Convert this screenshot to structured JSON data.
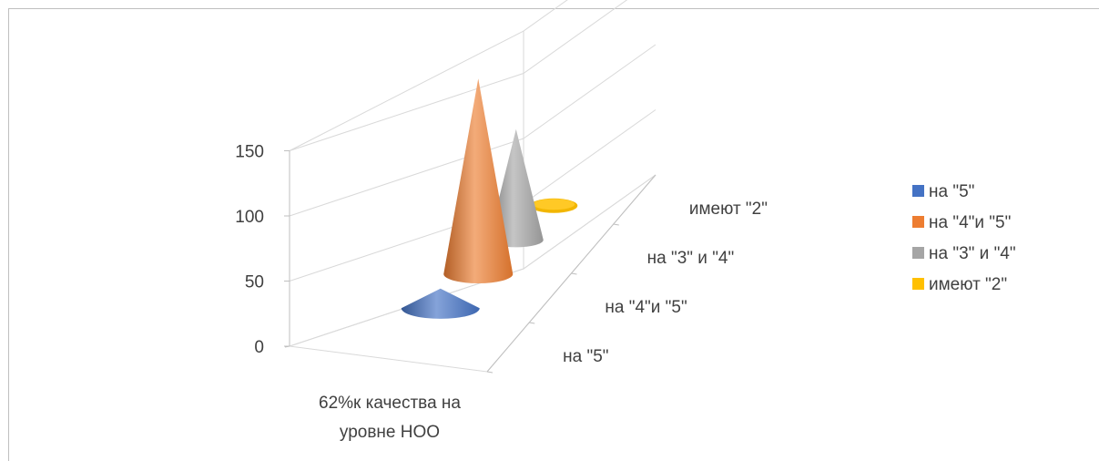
{
  "chart_data": {
    "type": "bar",
    "shape": "cone-3d",
    "categories": [
      "62%к качества на уровне НОО"
    ],
    "series": [
      {
        "name": "на \"5\"",
        "values": [
          15
        ],
        "color": "#4472C4"
      },
      {
        "name": "на \"4\"и \"5\"",
        "values": [
          150
        ],
        "color": "#ED7D31"
      },
      {
        "name": "на \"3\" и \"4\"",
        "values": [
          85
        ],
        "color": "#A5A5A5"
      },
      {
        "name": "имеют \"2\"",
        "values": [
          1
        ],
        "color": "#FFC000"
      }
    ],
    "yticks": [
      "0",
      "50",
      "100",
      "150"
    ],
    "ylim": [
      0,
      150
    ],
    "grid": true,
    "legend_position": "right"
  }
}
